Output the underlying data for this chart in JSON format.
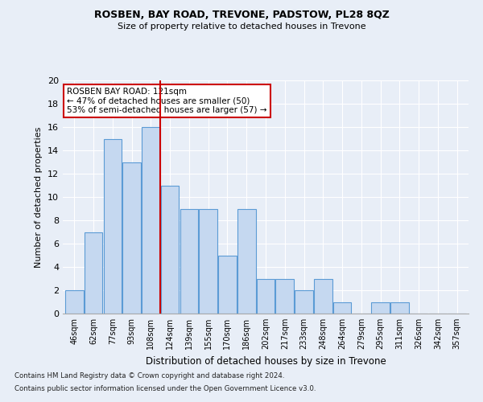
{
  "title": "ROSBEN, BAY ROAD, TREVONE, PADSTOW, PL28 8QZ",
  "subtitle": "Size of property relative to detached houses in Trevone",
  "xlabel": "Distribution of detached houses by size in Trevone",
  "ylabel": "Number of detached properties",
  "categories": [
    "46sqm",
    "62sqm",
    "77sqm",
    "93sqm",
    "108sqm",
    "124sqm",
    "139sqm",
    "155sqm",
    "170sqm",
    "186sqm",
    "202sqm",
    "217sqm",
    "233sqm",
    "248sqm",
    "264sqm",
    "279sqm",
    "295sqm",
    "311sqm",
    "326sqm",
    "342sqm",
    "357sqm"
  ],
  "values": [
    2,
    7,
    15,
    13,
    16,
    11,
    9,
    9,
    5,
    9,
    3,
    3,
    2,
    3,
    1,
    0,
    1,
    1,
    0,
    0,
    0
  ],
  "bar_color": "#c5d8f0",
  "bar_edge_color": "#5b9bd5",
  "annotation_text_line1": "ROSBEN BAY ROAD: 121sqm",
  "annotation_text_line2": "← 47% of detached houses are smaller (50)",
  "annotation_text_line3": "53% of semi-detached houses are larger (57) →",
  "annotation_box_color": "#ffffff",
  "annotation_box_edge": "#cc0000",
  "vline_color": "#cc0000",
  "vline_x": 4.5,
  "ylim": [
    0,
    20
  ],
  "yticks": [
    0,
    2,
    4,
    6,
    8,
    10,
    12,
    14,
    16,
    18,
    20
  ],
  "footer1": "Contains HM Land Registry data © Crown copyright and database right 2024.",
  "footer2": "Contains public sector information licensed under the Open Government Licence v3.0.",
  "bg_color": "#e8eef7",
  "plot_bg_color": "#e8eef7"
}
